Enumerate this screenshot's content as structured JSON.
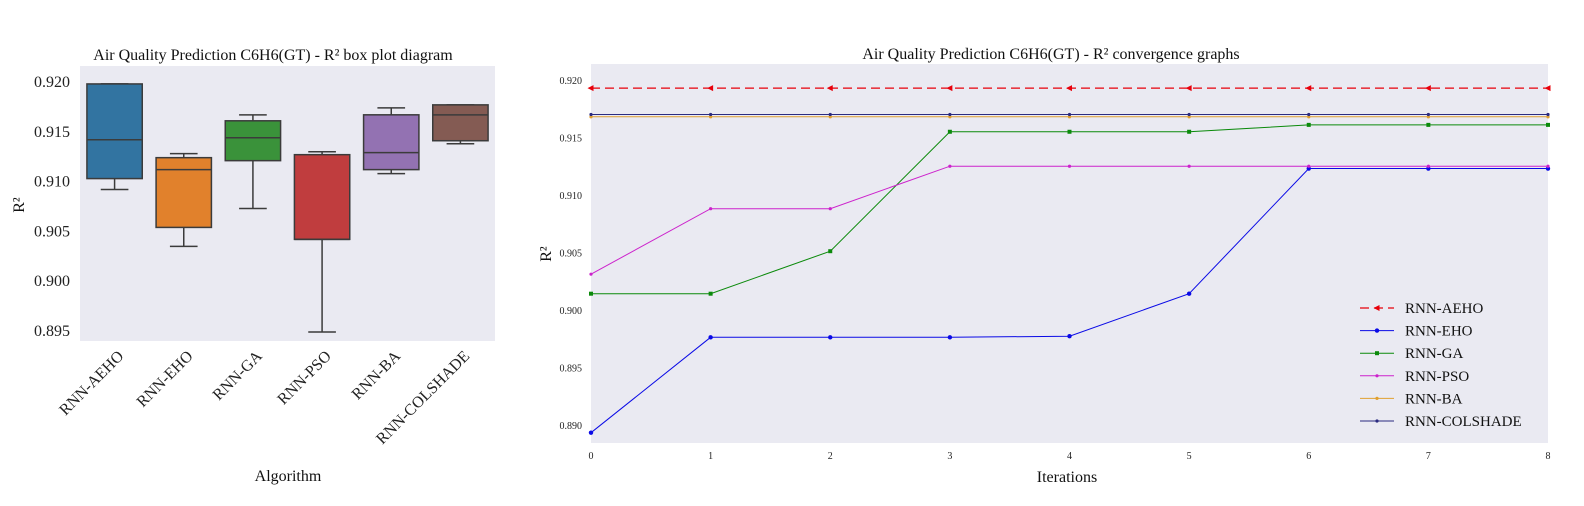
{
  "chart_data": [
    {
      "type": "box",
      "title": "Air Quality Prediction C6H6(GT) - R² box plot diagram",
      "xlabel": "Algorithm",
      "ylabel": "R²",
      "ylim": [
        0.894,
        0.9216
      ],
      "yticks": [
        "0.895",
        "0.900",
        "0.905",
        "0.910",
        "0.915",
        "0.920"
      ],
      "grid": false,
      "categories": [
        "RNN-AEHO",
        "RNN-EHO",
        "RNN-GA",
        "RNN-PSO",
        "RNN-BA",
        "RNN-COLSHADE"
      ],
      "boxes": [
        {
          "name": "RNN-AEHO",
          "whisker_low": 0.9092,
          "q1": 0.9103,
          "median": 0.9142,
          "q3": 0.9198,
          "whisker_high": 0.9198,
          "color": "#3274a1"
        },
        {
          "name": "RNN-EHO",
          "whisker_low": 0.9035,
          "q1": 0.9054,
          "median": 0.9112,
          "q3": 0.9124,
          "whisker_high": 0.9128,
          "color": "#e1812c"
        },
        {
          "name": "RNN-GA",
          "whisker_low": 0.9073,
          "q1": 0.9121,
          "median": 0.9144,
          "q3": 0.9161,
          "whisker_high": 0.9167,
          "color": "#3a923a"
        },
        {
          "name": "RNN-PSO",
          "whisker_low": 0.8949,
          "q1": 0.9042,
          "median": 0.9042,
          "q3": 0.9127,
          "whisker_high": 0.913,
          "color": "#c03d3e"
        },
        {
          "name": "RNN-BA",
          "whisker_low": 0.9108,
          "q1": 0.9112,
          "median": 0.9129,
          "q3": 0.9167,
          "whisker_high": 0.9174,
          "color": "#9372b2"
        },
        {
          "name": "RNN-COLSHADE",
          "whisker_low": 0.9138,
          "q1": 0.9141,
          "median": 0.9167,
          "q3": 0.9177,
          "whisker_high": 0.9177,
          "color": "#845b53"
        }
      ]
    },
    {
      "type": "line",
      "title": "Air Quality Prediction C6H6(GT) - R² convergence graphs",
      "xlabel": "Iterations",
      "ylabel": "R²",
      "xlim": [
        0,
        8
      ],
      "ylim": [
        0.8885,
        0.9215
      ],
      "xticks": [
        "0",
        "1",
        "2",
        "3",
        "4",
        "5",
        "6",
        "7",
        "8"
      ],
      "yticks": [
        "0.890",
        "0.895",
        "0.900",
        "0.905",
        "0.910",
        "0.915",
        "0.920"
      ],
      "grid": false,
      "legend": "center-right",
      "x": [
        0,
        1,
        2,
        3,
        4,
        5,
        6,
        7,
        8
      ],
      "series": [
        {
          "name": "RNN-AEHO",
          "color": "#e8000b",
          "dash": true,
          "marker": "triangle-left",
          "values": [
            0.9194,
            0.9194,
            0.9194,
            0.9194,
            0.9194,
            0.9194,
            0.9194,
            0.9194,
            0.9194
          ]
        },
        {
          "name": "RNN-EHO",
          "color": "#0a0ae6",
          "dash": false,
          "marker": "circle",
          "values": [
            0.8894,
            0.8977,
            0.8977,
            0.8977,
            0.8978,
            0.9015,
            0.9124,
            0.9124,
            0.9124
          ]
        },
        {
          "name": "RNN-GA",
          "color": "#0b8a0b",
          "dash": false,
          "marker": "square",
          "values": [
            0.9015,
            0.9015,
            0.9052,
            0.9156,
            0.9156,
            0.9156,
            0.9162,
            0.9162,
            0.9162
          ]
        },
        {
          "name": "RNN-PSO",
          "color": "#cc22cc",
          "dash": false,
          "marker": "circle-small",
          "values": [
            0.9032,
            0.9089,
            0.9089,
            0.9126,
            0.9126,
            0.9126,
            0.9126,
            0.9126,
            0.9126
          ]
        },
        {
          "name": "RNN-BA",
          "color": "#e0a030",
          "dash": false,
          "marker": "star",
          "values": [
            0.9169,
            0.9169,
            0.9169,
            0.9169,
            0.9169,
            0.9169,
            0.9169,
            0.9169,
            0.9169
          ]
        },
        {
          "name": "RNN-COLSHADE",
          "color": "#2b2b80",
          "dash": false,
          "marker": "tri",
          "values": [
            0.9171,
            0.9171,
            0.9171,
            0.9171,
            0.9171,
            0.9171,
            0.9171,
            0.9171,
            0.9171
          ]
        }
      ]
    }
  ]
}
